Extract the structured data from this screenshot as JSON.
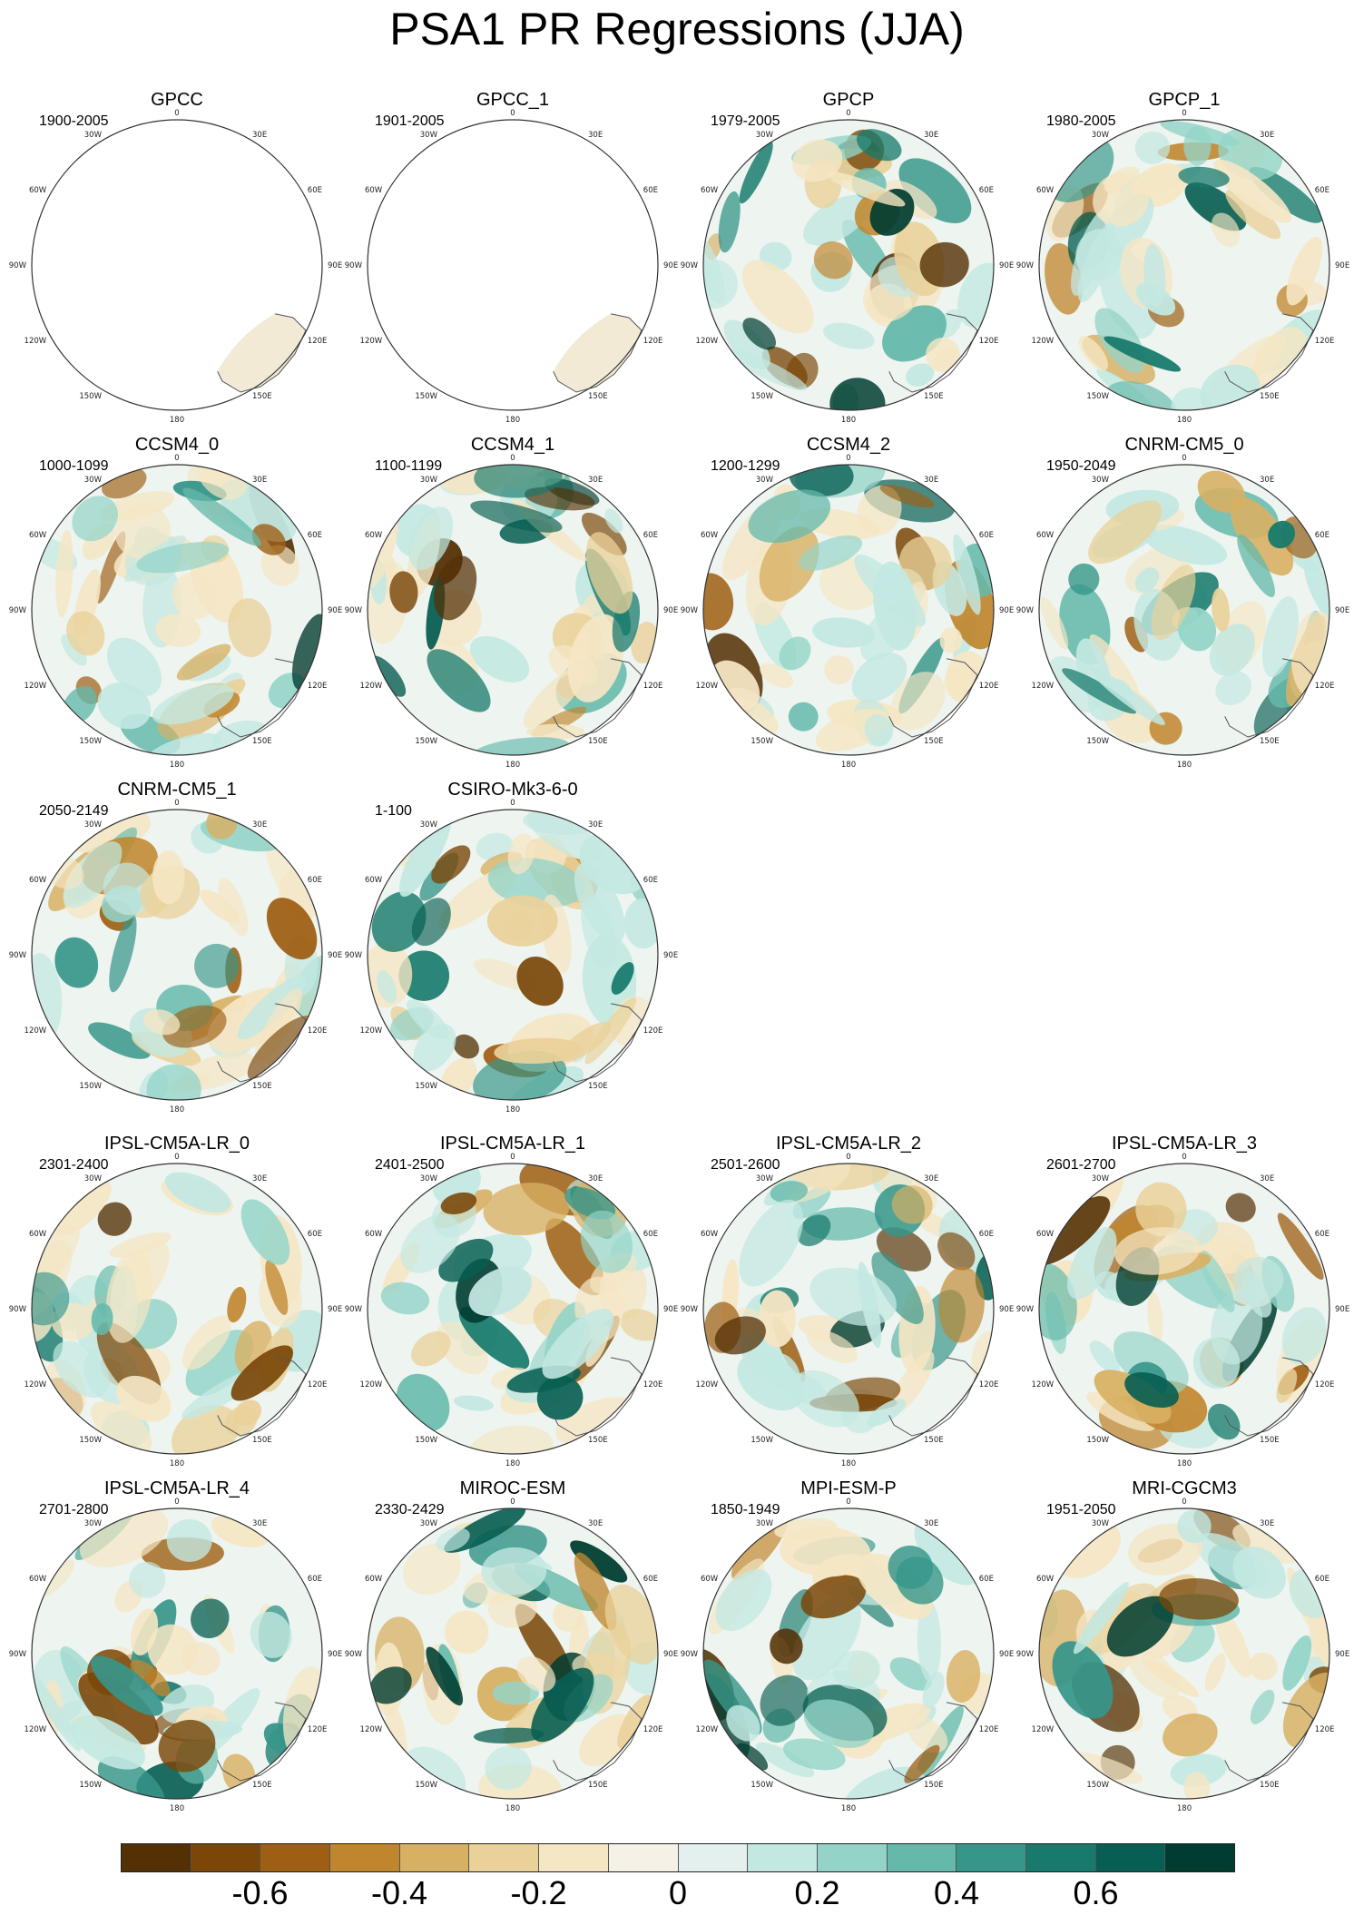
{
  "title": "PSA1 PR Regressions (JJA)",
  "map_labels": {
    "top": "0",
    "upper_left": "30W",
    "upper_right": "30E",
    "mid_upper_left": "60W",
    "mid_upper_right": "60E",
    "left": "90W",
    "right": "90E",
    "mid_lower_left": "120W",
    "mid_lower_right": "120E",
    "lower_left": "150W",
    "lower_right": "150E",
    "bottom": "180"
  },
  "panels": [
    {
      "name": "GPCC",
      "period": "1900-2005",
      "coverage": "land"
    },
    {
      "name": "GPCC_1",
      "period": "1901-2005",
      "coverage": "land"
    },
    {
      "name": "GPCP",
      "period": "1979-2005",
      "coverage": "full"
    },
    {
      "name": "GPCP_1",
      "period": "1980-2005",
      "coverage": "full"
    },
    {
      "name": "CCSM4_0",
      "period": "1000-1099",
      "coverage": "full"
    },
    {
      "name": "CCSM4_1",
      "period": "1100-1199",
      "coverage": "full"
    },
    {
      "name": "CCSM4_2",
      "period": "1200-1299",
      "coverage": "full"
    },
    {
      "name": "CNRM-CM5_0",
      "period": "1950-2049",
      "coverage": "full"
    },
    {
      "name": "CNRM-CM5_1",
      "period": "2050-2149",
      "coverage": "full"
    },
    {
      "name": "CSIRO-Mk3-6-0",
      "period": "1-100",
      "coverage": "full"
    },
    {
      "name": "IPSL-CM5A-LR_0",
      "period": "2301-2400",
      "coverage": "full"
    },
    {
      "name": "IPSL-CM5A-LR_1",
      "period": "2401-2500",
      "coverage": "full"
    },
    {
      "name": "IPSL-CM5A-LR_2",
      "period": "2501-2600",
      "coverage": "full"
    },
    {
      "name": "IPSL-CM5A-LR_3",
      "period": "2601-2700",
      "coverage": "full"
    },
    {
      "name": "IPSL-CM5A-LR_4",
      "period": "2701-2800",
      "coverage": "full"
    },
    {
      "name": "MIROC-ESM",
      "period": "2330-2429",
      "coverage": "full"
    },
    {
      "name": "MPI-ESM-P",
      "period": "1850-1949",
      "coverage": "full"
    },
    {
      "name": "MRI-CGCM3",
      "period": "1951-2050",
      "coverage": "full"
    }
  ],
  "colorbar": {
    "colors": [
      "#543005",
      "#7a4709",
      "#9e5f14",
      "#c0862e",
      "#d8b063",
      "#ead19a",
      "#f5e6c4",
      "#f5f1e6",
      "#e3f0ee",
      "#c3e8e2",
      "#94d4c8",
      "#64b9ab",
      "#37968a",
      "#177a6c",
      "#075e52",
      "#003c30"
    ],
    "labels": [
      {
        "text": "-0.6",
        "value": -0.6
      },
      {
        "text": "-0.4",
        "value": -0.4
      },
      {
        "text": "-0.2",
        "value": -0.2
      },
      {
        "text": "0",
        "value": 0
      },
      {
        "text": "0.2",
        "value": 0.2
      },
      {
        "text": "0.4",
        "value": 0.4
      },
      {
        "text": "0.6",
        "value": 0.6
      }
    ],
    "range": [
      -0.8,
      0.8
    ]
  }
}
